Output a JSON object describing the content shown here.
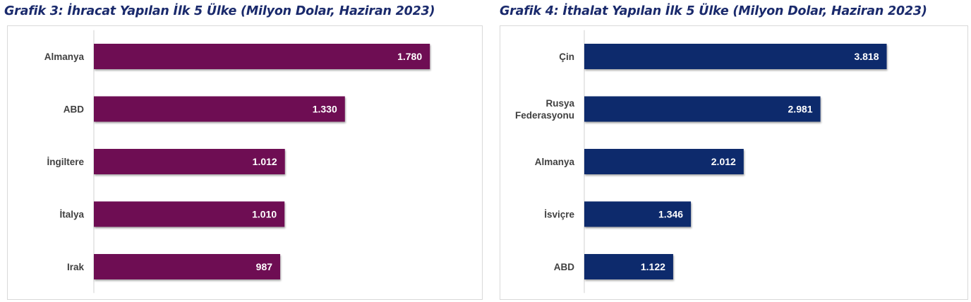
{
  "chart_data": [
    {
      "type": "bar",
      "orientation": "horizontal",
      "title": "Grafik 3:  İhracat Yapılan İlk 5 Ülke (Milyon Dolar, Haziran 2023)",
      "categories": [
        "Almanya",
        "ABD",
        "İngiltere",
        "İtalya",
        "Irak"
      ],
      "values": [
        1780,
        1330,
        1012,
        1010,
        987
      ],
      "value_labels": [
        "1.780",
        "1.330",
        "1.012",
        "1.010",
        "987"
      ],
      "xlim": [
        0,
        2000
      ],
      "color": "#6e0f52",
      "grid": false,
      "legend": false
    },
    {
      "type": "bar",
      "orientation": "horizontal",
      "title": "Grafik 4:  İthalat Yapılan İlk 5 Ülke (Milyon Dolar, Haziran 2023)",
      "categories": [
        "Çin",
        "Rusya\nFederasyonu",
        "Almanya",
        "İsviçre",
        "ABD"
      ],
      "values": [
        3818,
        2981,
        2012,
        1346,
        1122
      ],
      "value_labels": [
        "3.818",
        "2.981",
        "2.012",
        "1.346",
        "1.122"
      ],
      "xlim": [
        0,
        4250
      ],
      "color": "#0a2a6c",
      "grid": false,
      "legend": false
    }
  ]
}
